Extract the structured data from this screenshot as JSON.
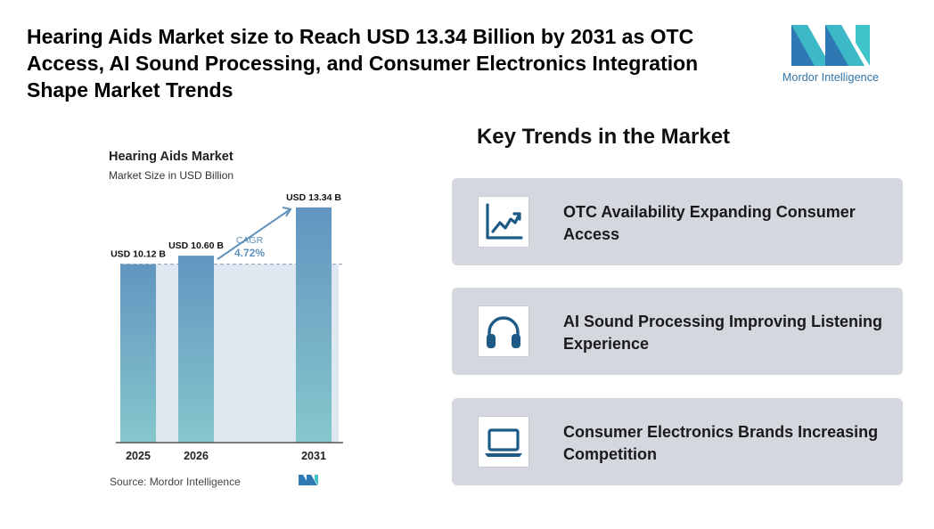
{
  "headline": "Hearing Aids Market size to Reach USD 13.34 Billion by 2031 as OTC Access, AI Sound Processing, and Consumer Electronics Integration Shape Market Trends",
  "brand": {
    "name": "Mordor Intelligence",
    "logo_icon": "mordor-logo-icon",
    "colors": {
      "teal": "#3ec3c9",
      "blue": "#2e79b3"
    }
  },
  "chart_data": {
    "type": "bar",
    "title": "Hearing Aids Market",
    "subtitle": "Market Size in USD Billion",
    "categories": [
      "2025",
      "2026",
      "2031"
    ],
    "values": [
      10.12,
      10.6,
      13.34
    ],
    "value_labels": [
      "USD 10.12 B",
      "USD 10.60 B",
      "USD 13.34 B"
    ],
    "cagr_label": "CAGR",
    "cagr_value": "4.72%",
    "ylim": [
      0,
      15
    ],
    "source": "Source: Mordor Intelligence",
    "colors": {
      "bar_top": "#6195c0",
      "bar_bottom": "#86c7cc",
      "band": "#dde8f1",
      "arrow": "#5f92bd",
      "cagr_text": "#5f92bd"
    }
  },
  "trends": {
    "title": "Key Trends in the Market",
    "items": [
      {
        "label": "OTC Availability Expanding Consumer Access",
        "icon": "line-chart-icon"
      },
      {
        "label": "AI Sound Processing Improving Listening Experience",
        "icon": "headphones-icon"
      },
      {
        "label": "Consumer Electronics Brands Increasing Competition",
        "icon": "laptop-icon"
      }
    ],
    "icon_color": "#1d5a86",
    "card_color": "#d4d8de"
  }
}
